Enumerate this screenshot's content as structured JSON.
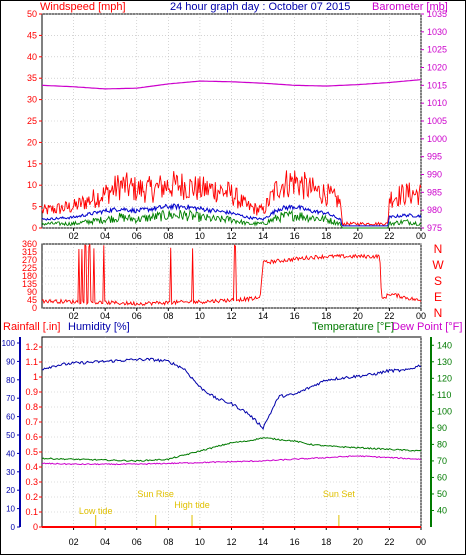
{
  "header": {
    "left_label": "Windspeed [mph]",
    "title": "24 hour graph day : October 07 2015",
    "right_label": "Barometer [mb]"
  },
  "colors": {
    "wind": "#ff0000",
    "wind_avg": "#0000cc",
    "wind_low": "#008000",
    "baro": "#cc00cc",
    "humidity": "#0000aa",
    "temperature": "#007a00",
    "dewpoint": "#cc00cc",
    "rain": "#ff0000",
    "events": "#e0c000",
    "grid": "#bbbbbb",
    "frame": "#000000"
  },
  "chart_data": [
    {
      "type": "line",
      "name": "wind-barometer",
      "x_ticks": [
        "02",
        "04",
        "06",
        "08",
        "10",
        "12",
        "14",
        "16",
        "18",
        "20",
        "22",
        "00"
      ],
      "y_left": {
        "label": "Windspeed [mph]",
        "ticks": [
          0,
          5,
          10,
          15,
          20,
          25,
          30,
          35,
          40,
          45,
          50
        ],
        "range": [
          0,
          50
        ]
      },
      "y_right": {
        "label": "Barometer [mb]",
        "ticks": [
          975,
          980,
          985,
          990,
          995,
          1000,
          1005,
          1010,
          1015,
          1020,
          1025,
          1030,
          1035
        ],
        "range": [
          975,
          1035
        ]
      },
      "series": [
        {
          "hours": [
            0,
            2,
            4,
            5,
            6,
            7,
            8,
            9,
            10,
            11,
            12,
            13,
            14,
            15,
            16,
            17,
            18,
            18.9,
            19,
            21.9,
            22,
            23,
            24
          ],
          "gust": [
            4,
            5,
            8,
            10,
            9,
            9,
            10,
            10,
            9,
            9,
            8,
            5,
            4,
            10,
            11,
            9,
            8,
            6,
            1,
            1,
            7,
            8,
            8
          ]
        },
        {
          "hours": [
            0,
            2,
            4,
            5,
            6,
            7,
            8,
            9,
            10,
            11,
            12,
            13,
            14,
            15,
            16,
            17,
            18,
            18.9,
            19,
            21.9,
            22,
            23,
            24
          ],
          "avg": [
            2,
            2.5,
            4,
            4.5,
            4,
            4.5,
            5,
            5,
            4.5,
            4,
            3.5,
            2.5,
            2,
            4.5,
            5,
            4,
            3.5,
            2,
            0.5,
            0.5,
            2.5,
            3,
            2.8
          ]
        },
        {
          "hours": [
            0,
            2,
            4,
            5,
            6,
            7,
            8,
            9,
            10,
            11,
            12,
            13,
            14,
            15,
            16,
            17,
            18,
            18.9,
            19,
            21.9,
            22,
            23,
            24
          ],
          "low": [
            1,
            1,
            2,
            2.5,
            2,
            2.5,
            3,
            3,
            2.5,
            2,
            2,
            1,
            1,
            2.5,
            3,
            2.5,
            2,
            1,
            0,
            0,
            1,
            1.5,
            1
          ]
        },
        {
          "hours": [
            0,
            2,
            4,
            6,
            8,
            10,
            12,
            14,
            16,
            18,
            20,
            22,
            24
          ],
          "barometer": [
            1015.0,
            1014.6,
            1014.0,
            1014.2,
            1015.4,
            1016.2,
            1016.0,
            1015.6,
            1015.0,
            1014.8,
            1015.2,
            1015.8,
            1016.6
          ]
        }
      ]
    },
    {
      "type": "line",
      "name": "wind-direction",
      "x_ticks": [
        "02",
        "04",
        "06",
        "08",
        "10",
        "12",
        "14",
        "16",
        "18",
        "20",
        "22",
        "00"
      ],
      "y_left": {
        "ticks": [
          0,
          45,
          90,
          135,
          180,
          225,
          270,
          315,
          360
        ],
        "range": [
          0,
          360
        ]
      },
      "y_right": {
        "compass": [
          "N",
          "W",
          "S",
          "E",
          "N"
        ]
      },
      "series": [
        {
          "hours": [
            0,
            2,
            4,
            6,
            8,
            10,
            12,
            13.8,
            14,
            15,
            16,
            17,
            18,
            19,
            21.4,
            21.5,
            22,
            23,
            24
          ],
          "direction": [
            40,
            35,
            30,
            25,
            30,
            35,
            45,
            55,
            255,
            265,
            275,
            285,
            290,
            290,
            290,
            45,
            80,
            60,
            40
          ]
        }
      ]
    },
    {
      "type": "line",
      "name": "rain-humidity-temperature",
      "x_ticks": [
        "02",
        "04",
        "06",
        "08",
        "10",
        "12",
        "14",
        "16",
        "18",
        "20",
        "22",
        "00"
      ],
      "y_left_rain": {
        "label": "Rainfall [.in]",
        "ticks": [
          0,
          0.1,
          0.2,
          0.3,
          0.4,
          0.5,
          0.6,
          0.7,
          0.8,
          0.9,
          1,
          1.1,
          1.2
        ],
        "range": [
          0,
          1.2
        ]
      },
      "y_left_humidity": {
        "label": "Humidity [%]",
        "ticks": [
          0,
          10,
          20,
          30,
          40,
          50,
          60,
          70,
          80,
          90,
          100
        ],
        "range": [
          0,
          100
        ]
      },
      "y_right": {
        "ticks": [
          40,
          50,
          60,
          70,
          80,
          90,
          100,
          110,
          120,
          130,
          140
        ],
        "range": [
          30,
          145
        ]
      },
      "legend": [
        "Temperature [°F]",
        "Dew Point [°F]"
      ],
      "series": [
        {
          "hours": [
            0,
            1,
            2,
            4,
            6,
            7,
            8,
            9,
            10,
            11,
            12,
            13,
            14,
            15,
            16,
            17,
            18,
            19,
            20,
            21,
            22,
            23,
            24
          ],
          "humidity": [
            86,
            88,
            89,
            90,
            91,
            91,
            90,
            86,
            76,
            70,
            67,
            62,
            54,
            71,
            72,
            76,
            80,
            81,
            82,
            83,
            85,
            85,
            88
          ]
        },
        {
          "hours": [
            0,
            2,
            4,
            6,
            8,
            10,
            12,
            13,
            14,
            15,
            16,
            17,
            18,
            20,
            22,
            24
          ],
          "temperature": [
            71.5,
            71,
            70.5,
            70,
            71,
            76,
            81,
            82,
            84,
            83,
            82,
            80,
            79,
            78,
            77,
            76
          ]
        },
        {
          "hours": [
            0,
            2,
            4,
            6,
            8,
            10,
            12,
            14,
            16,
            18,
            20,
            22,
            24
          ],
          "dewpoint": [
            68.5,
            68,
            68,
            68,
            68.5,
            69,
            69.5,
            70,
            71,
            72,
            73,
            72,
            71
          ]
        },
        {
          "hours": [
            0,
            24
          ],
          "rainfall": [
            0,
            0
          ]
        }
      ],
      "annotations": [
        {
          "label": "Low tide",
          "hour": 3.4
        },
        {
          "label": "Sun Rise",
          "hour": 7.2
        },
        {
          "label": "High tide",
          "hour": 9.5
        },
        {
          "label": "Sun Set",
          "hour": 18.8
        }
      ]
    }
  ]
}
